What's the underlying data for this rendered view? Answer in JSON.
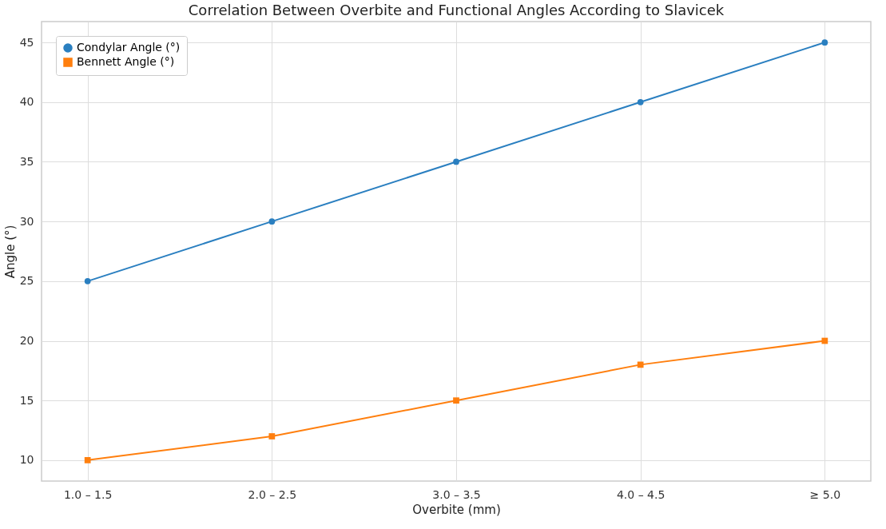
{
  "chart_data": {
    "type": "line",
    "title": "Correlation Between Overbite and Functional Angles According to Slavicek",
    "xlabel": "Overbite (mm)",
    "ylabel": "Angle (°)",
    "categories": [
      "1.0 – 1.5",
      "2.0 – 2.5",
      "3.0 – 3.5",
      "4.0 – 4.5",
      "≥ 5.0"
    ],
    "series": [
      {
        "name": "Condylar Angle (°)",
        "color": "#2a7fc0",
        "marker": "circle",
        "values": [
          25,
          30,
          35,
          40,
          45
        ]
      },
      {
        "name": "Bennett Angle (°)",
        "color": "#ff7f0e",
        "marker": "square",
        "values": [
          10,
          12,
          15,
          18,
          20
        ]
      }
    ],
    "ylim": [
      8.25,
      46.75
    ],
    "yticks": [
      10,
      15,
      20,
      25,
      30,
      35,
      40,
      45
    ],
    "grid": true,
    "legend": "top left",
    "line_style": "solid"
  }
}
